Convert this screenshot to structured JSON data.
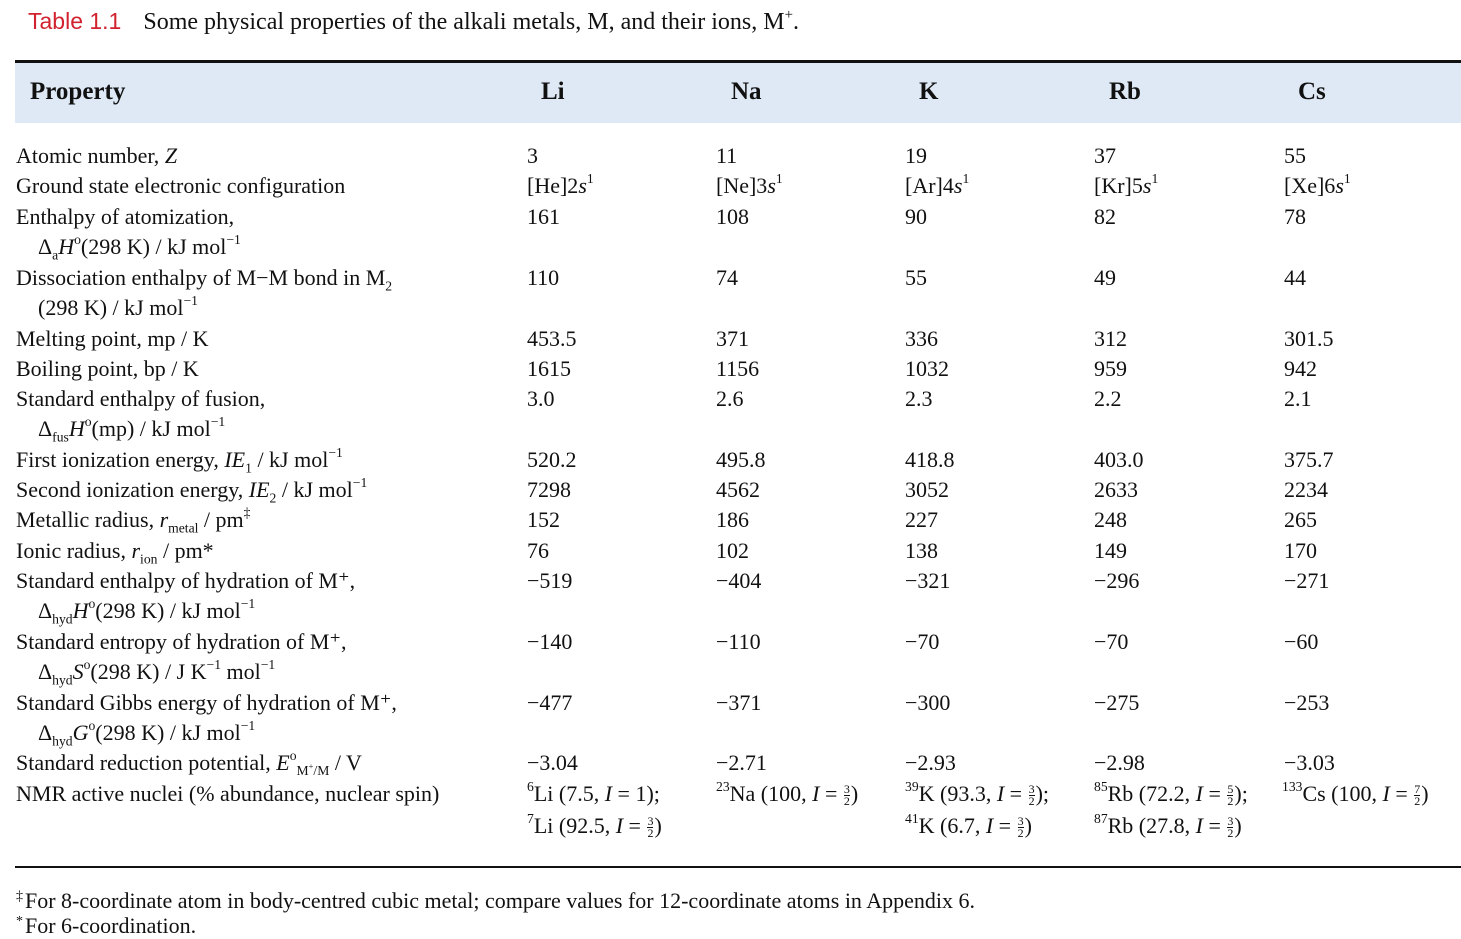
{
  "caption": {
    "label": "Table 1.1",
    "text": "Some physical properties of the alkali metals, M, and their ions, M⁺."
  },
  "headers": [
    "Property",
    "Li",
    "Na",
    "K",
    "Rb",
    "Cs"
  ],
  "rows": [
    {
      "property": "Atomic number, Z",
      "values": [
        "3",
        "11",
        "19",
        "37",
        "55"
      ]
    },
    {
      "property": "Ground state electronic configuration",
      "values": [
        "[He]2s¹",
        "[Ne]3s¹",
        "[Ar]4s¹",
        "[Kr]5s¹",
        "[Xe]6s¹"
      ]
    },
    {
      "property": "Enthalpy of atomization,",
      "property_line2": "ΔaHo(298 K) / kJ mol⁻¹",
      "values": [
        "161",
        "108",
        "90",
        "82",
        "78"
      ]
    },
    {
      "property": "Dissociation enthalpy of M−M bond in M₂",
      "property_line2": "(298 K) / kJ mol⁻¹",
      "values": [
        "110",
        "74",
        "55",
        "49",
        "44"
      ]
    },
    {
      "property": "Melting point, mp / K",
      "values": [
        "453.5",
        "371",
        "336",
        "312",
        "301.5"
      ]
    },
    {
      "property": "Boiling point, bp / K",
      "values": [
        "1615",
        "1156",
        "1032",
        "959",
        "942"
      ]
    },
    {
      "property": "Standard enthalpy of fusion,",
      "property_line2": "ΔfusHo(mp) / kJ mol⁻¹",
      "values": [
        "3.0",
        "2.6",
        "2.3",
        "2.2",
        "2.1"
      ]
    },
    {
      "property": "First ionization energy, IE₁ / kJ mol⁻¹",
      "values": [
        "520.2",
        "495.8",
        "418.8",
        "403.0",
        "375.7"
      ]
    },
    {
      "property": "Second ionization energy, IE₂ / kJ mol⁻¹",
      "values": [
        "7298",
        "4562",
        "3052",
        "2633",
        "2234"
      ]
    },
    {
      "property": "Metallic radius, rmetal / pm‡",
      "values": [
        "152",
        "186",
        "227",
        "248",
        "265"
      ]
    },
    {
      "property": "Ionic radius, rion / pm*",
      "values": [
        "76",
        "102",
        "138",
        "149",
        "170"
      ]
    },
    {
      "property": "Standard enthalpy of hydration of M⁺,",
      "property_line2": "ΔhydHo(298 K) / kJ mol⁻¹",
      "values": [
        "−519",
        "−404",
        "−321",
        "−296",
        "−271"
      ]
    },
    {
      "property": "Standard entropy of hydration of M⁺,",
      "property_line2": "ΔhydSo(298 K) / J K⁻¹ mol⁻¹",
      "values": [
        "−140",
        "−110",
        "−70",
        "−70",
        "−60"
      ]
    },
    {
      "property": "Standard Gibbs energy of hydration of M⁺,",
      "property_line2": "ΔhydGo(298 K) / kJ mol⁻¹",
      "values": [
        "−477",
        "−371",
        "−300",
        "−275",
        "−253"
      ]
    },
    {
      "property": "Standard reduction potential, EoM⁺/M / V",
      "values": [
        "−3.04",
        "−2.71",
        "−2.93",
        "−2.98",
        "−3.03"
      ]
    },
    {
      "property": "NMR active nuclei (% abundance, nuclear spin)",
      "values": [
        "⁶Li (7.5, I = 1);",
        "²³Na (100, I = 3/2)",
        "³⁹K (93.3, I = 3/2);",
        "⁸⁵Rb (72.2, I = 5/2);",
        "¹³³Cs (100, I = 7/2)"
      ],
      "values_line2": [
        "⁷Li (92.5, I = 3/2)",
        "",
        "⁴¹K (6.7, I = 3/2)",
        "⁸⁷Rb (27.8, I = 3/2)",
        ""
      ]
    }
  ],
  "footnotes": [
    {
      "mark": "‡",
      "text": "For 8-coordinate atom in body-centred cubic metal; compare values for 12-coordinate atoms in Appendix 6."
    },
    {
      "mark": "*",
      "text": "For 6-coordination."
    }
  ]
}
